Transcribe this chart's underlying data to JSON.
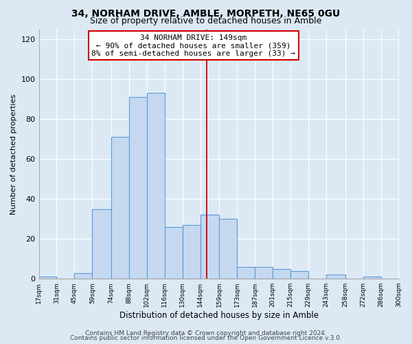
{
  "title": "34, NORHAM DRIVE, AMBLE, MORPETH, NE65 0GU",
  "subtitle": "Size of property relative to detached houses in Amble",
  "xlabel": "Distribution of detached houses by size in Amble",
  "ylabel": "Number of detached properties",
  "bin_edges": [
    17,
    31,
    45,
    59,
    74,
    88,
    102,
    116,
    130,
    144,
    159,
    173,
    187,
    201,
    215,
    229,
    243,
    258,
    272,
    286,
    300
  ],
  "bar_heights": [
    1,
    0,
    3,
    35,
    71,
    91,
    93,
    26,
    27,
    32,
    30,
    6,
    6,
    5,
    4,
    0,
    2,
    0,
    1,
    0
  ],
  "tick_labels": [
    "17sqm",
    "31sqm",
    "45sqm",
    "59sqm",
    "74sqm",
    "88sqm",
    "102sqm",
    "116sqm",
    "130sqm",
    "144sqm",
    "159sqm",
    "173sqm",
    "187sqm",
    "201sqm",
    "215sqm",
    "229sqm",
    "243sqm",
    "258sqm",
    "272sqm",
    "286sqm",
    "300sqm"
  ],
  "bar_color": "#c5d8f0",
  "bar_edge_color": "#5b9bd5",
  "reference_line_x": 149,
  "reference_line_color": "#cc0000",
  "annotation_box_text": "34 NORHAM DRIVE: 149sqm\n← 90% of detached houses are smaller (359)\n8% of semi-detached houses are larger (33) →",
  "annotation_box_edge_color": "#cc0000",
  "ylim": [
    0,
    125
  ],
  "yticks": [
    0,
    20,
    40,
    60,
    80,
    100,
    120
  ],
  "background_color": "#dce9f5",
  "plot_bg_color": "#dce9f5",
  "footer_line1": "Contains HM Land Registry data © Crown copyright and database right 2024.",
  "footer_line2": "Contains public sector information licensed under the Open Government Licence v.3.0.",
  "title_fontsize": 10,
  "subtitle_fontsize": 9,
  "annotation_fontsize": 8,
  "footer_fontsize": 6.5
}
